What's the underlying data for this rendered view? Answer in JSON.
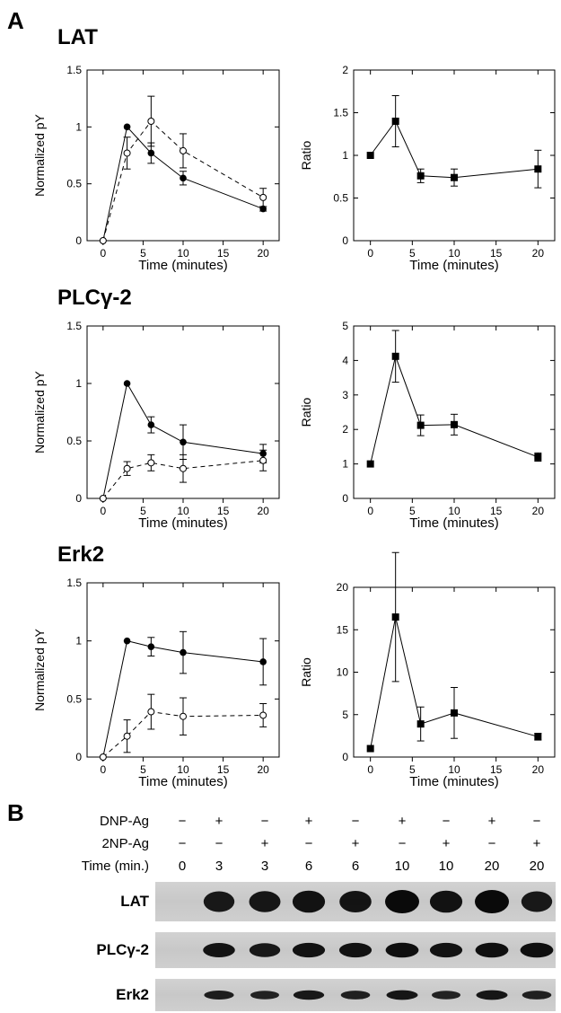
{
  "panels": {
    "a": "A",
    "b": "B"
  },
  "chart_data": [
    {
      "type": "line",
      "protein": "LAT",
      "title": "LAT",
      "xlabel": "Time (minutes)",
      "ylabel": "Normalized pY",
      "xlim": [
        -2,
        22
      ],
      "ylim": [
        0,
        1.5
      ],
      "xticks": [
        0,
        5,
        10,
        15,
        20
      ],
      "yticks": [
        0,
        0.5,
        1,
        1.5
      ],
      "xtick_labels": [
        "0",
        "5",
        "10",
        "15",
        "20"
      ],
      "ytick_labels": [
        "0",
        "0.5",
        "1",
        "1.5"
      ],
      "series": [
        {
          "marker": "filled-circle",
          "dash": false,
          "x": [
            0,
            3,
            6,
            10,
            20
          ],
          "y": [
            0,
            1.0,
            0.77,
            0.55,
            0.28
          ],
          "err": [
            0,
            0,
            0.09,
            0.06,
            0.02
          ]
        },
        {
          "marker": "open-circle",
          "dash": true,
          "x": [
            0,
            3,
            6,
            10,
            20
          ],
          "y": [
            0,
            0.77,
            1.05,
            0.79,
            0.38
          ],
          "err": [
            0,
            0.14,
            0.22,
            0.15,
            0.08
          ]
        }
      ]
    },
    {
      "type": "line",
      "protein": "LAT",
      "xlabel": "Time (minutes)",
      "ylabel": "Ratio",
      "xlim": [
        -2,
        22
      ],
      "ylim": [
        0,
        2
      ],
      "xticks": [
        0,
        5,
        10,
        15,
        20
      ],
      "yticks": [
        0,
        0.5,
        1,
        1.5,
        2
      ],
      "xtick_labels": [
        "0",
        "5",
        "10",
        "15",
        "20"
      ],
      "ytick_labels": [
        "0",
        "0.5",
        "1",
        "1.5",
        "2"
      ],
      "series": [
        {
          "marker": "filled-square",
          "dash": false,
          "x": [
            0,
            3,
            6,
            10,
            20
          ],
          "y": [
            1.0,
            1.4,
            0.76,
            0.74,
            0.84
          ],
          "err": [
            0,
            0.3,
            0.08,
            0.1,
            0.22
          ]
        }
      ]
    },
    {
      "type": "line",
      "protein": "PLCγ-2",
      "title": "PLCγ-2",
      "xlabel": "Time (minutes)",
      "ylabel": "Normalized pY",
      "xlim": [
        -2,
        22
      ],
      "ylim": [
        0,
        1.5
      ],
      "xticks": [
        0,
        5,
        10,
        15,
        20
      ],
      "yticks": [
        0,
        0.5,
        1,
        1.5
      ],
      "xtick_labels": [
        "0",
        "5",
        "10",
        "15",
        "20"
      ],
      "ytick_labels": [
        "0",
        "0.5",
        "1",
        "1.5"
      ],
      "series": [
        {
          "marker": "filled-circle",
          "dash": false,
          "x": [
            0,
            3,
            6,
            10,
            20
          ],
          "y": [
            0,
            1.0,
            0.64,
            0.49,
            0.39
          ],
          "err": [
            0,
            0,
            0.07,
            0.15,
            0.08
          ]
        },
        {
          "marker": "open-circle",
          "dash": true,
          "x": [
            0,
            3,
            6,
            10,
            20
          ],
          "y": [
            0,
            0.26,
            0.31,
            0.26,
            0.33
          ],
          "err": [
            0,
            0.06,
            0.07,
            0.12,
            0.09
          ]
        }
      ]
    },
    {
      "type": "line",
      "protein": "PLCγ-2",
      "xlabel": "Time (minutes)",
      "ylabel": "Ratio",
      "xlim": [
        -2,
        22
      ],
      "ylim": [
        0,
        5
      ],
      "xticks": [
        0,
        5,
        10,
        15,
        20
      ],
      "yticks": [
        0,
        1,
        2,
        3,
        4,
        5
      ],
      "xtick_labels": [
        "0",
        "5",
        "10",
        "15",
        "20"
      ],
      "ytick_labels": [
        "0",
        "1",
        "2",
        "3",
        "4",
        "5"
      ],
      "series": [
        {
          "marker": "filled-square",
          "dash": false,
          "x": [
            0,
            3,
            6,
            10,
            20
          ],
          "y": [
            1.0,
            4.12,
            2.12,
            2.14,
            1.2
          ],
          "err": [
            0,
            0.75,
            0.3,
            0.3,
            0.12
          ]
        }
      ]
    },
    {
      "type": "line",
      "protein": "Erk2",
      "title": "Erk2",
      "xlabel": "Time (minutes)",
      "ylabel": "Normalized pY",
      "xlim": [
        -2,
        22
      ],
      "ylim": [
        0,
        1.5
      ],
      "xticks": [
        0,
        5,
        10,
        15,
        20
      ],
      "yticks": [
        0,
        0.5,
        1,
        1.5
      ],
      "xtick_labels": [
        "0",
        "5",
        "10",
        "15",
        "20"
      ],
      "ytick_labels": [
        "0",
        "0.5",
        "1",
        "1.5"
      ],
      "series": [
        {
          "marker": "filled-circle",
          "dash": false,
          "x": [
            0,
            3,
            6,
            10,
            20
          ],
          "y": [
            0,
            1.0,
            0.95,
            0.9,
            0.82
          ],
          "err": [
            0,
            0,
            0.08,
            0.18,
            0.2
          ]
        },
        {
          "marker": "open-circle",
          "dash": true,
          "x": [
            0,
            3,
            6,
            10,
            20
          ],
          "y": [
            0,
            0.18,
            0.39,
            0.35,
            0.36
          ],
          "err": [
            0,
            0.14,
            0.15,
            0.16,
            0.1
          ]
        }
      ]
    },
    {
      "type": "line",
      "protein": "Erk2",
      "xlabel": "Time (minutes)",
      "ylabel": "Ratio",
      "xlim": [
        -2,
        22
      ],
      "ylim": [
        0,
        20
      ],
      "xticks": [
        0,
        5,
        10,
        15,
        20
      ],
      "yticks": [
        0,
        5,
        10,
        15,
        20
      ],
      "xtick_labels": [
        "0",
        "5",
        "10",
        "15",
        "20"
      ],
      "ytick_labels": [
        "0",
        "5",
        "10",
        "15",
        "20"
      ],
      "series": [
        {
          "marker": "filled-square",
          "dash": false,
          "x": [
            0,
            3,
            6,
            10,
            20
          ],
          "y": [
            1.0,
            16.5,
            3.9,
            5.2,
            2.4
          ],
          "err": [
            0,
            7.6,
            2.0,
            3.0,
            0.4
          ]
        }
      ]
    }
  ],
  "blot": {
    "row_labels": [
      "DNP-Ag",
      "2NP-Ag",
      "Time (min.)"
    ],
    "dnp": [
      "−",
      "+",
      "−",
      "+",
      "−",
      "+",
      "−",
      "+",
      "−"
    ],
    "np2": [
      "−",
      "−",
      "+",
      "−",
      "+",
      "−",
      "+",
      "−",
      "+"
    ],
    "time": [
      "0",
      "3",
      "3",
      "6",
      "6",
      "10",
      "10",
      "20",
      "20"
    ],
    "proteins": [
      "LAT",
      "PLCγ-2",
      "Erk2"
    ],
    "band_intensity": [
      [
        0,
        0.7,
        0.75,
        0.85,
        0.8,
        1.0,
        0.85,
        1.0,
        0.7
      ],
      [
        0,
        0.8,
        0.7,
        0.85,
        0.85,
        0.9,
        0.85,
        0.9,
        0.9
      ],
      [
        0,
        0.6,
        0.5,
        0.7,
        0.55,
        0.75,
        0.5,
        0.75,
        0.55
      ]
    ]
  }
}
